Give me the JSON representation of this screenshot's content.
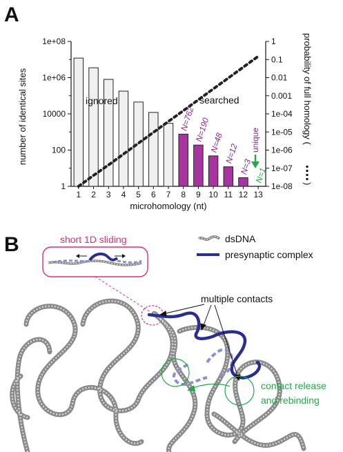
{
  "panel_a": {
    "letter": "A",
    "ylabel_left": "number of identical sites",
    "ylabel_right": "probability of full homology (",
    "xlabel": "microhomology (nt)",
    "ignored_label": "ignored",
    "searched_label": "searched",
    "unique_label": "unique"
  },
  "chart_data": {
    "type": "bar",
    "categories": [
      "1",
      "2",
      "3",
      "4",
      "5",
      "6",
      "7",
      "8",
      "9",
      "10",
      "11",
      "12",
      "13"
    ],
    "series": [
      {
        "axis": "left",
        "values": [
          12000000,
          3500000,
          800000,
          180000,
          45000,
          12000,
          3000,
          762,
          190,
          48,
          12,
          3,
          1
        ]
      },
      {
        "axis": "right",
        "style": "dotted-line",
        "x": [
          1,
          2,
          3,
          4,
          5,
          6,
          7,
          8,
          9,
          10,
          11,
          12,
          13
        ],
        "values": [
          1e-08,
          4e-08,
          1.5e-07,
          6e-07,
          2.4e-06,
          9.5e-06,
          3.8e-05,
          0.00015,
          0.0006,
          0.0024,
          0.0095,
          0.038,
          0.15
        ]
      }
    ],
    "bar_colors": {
      "ignored": "#f0f0f0",
      "searched": "#a8359f"
    },
    "bar_value_labels": [
      "",
      "",
      "",
      "",
      "",
      "",
      "",
      "N=762",
      "N=190",
      "N=48",
      "N=12",
      "N=3",
      "N=1"
    ],
    "yticks_left": [
      "1",
      "100",
      "10000",
      "1e+06",
      "1e+08"
    ],
    "yticks_right": [
      "1e-08",
      "1e-07",
      "1e-06",
      "1e-05",
      "1e-04",
      "0.001",
      "0.01",
      "0.1",
      "1"
    ],
    "ylim_left": [
      1,
      100000000
    ],
    "ylim_right": [
      1e-08,
      1
    ],
    "log_scale": true,
    "xlabel": "microhomology (nt)",
    "ylabel": "number of identical sites"
  },
  "panel_b": {
    "letter": "B",
    "inset_label": "short 1D sliding",
    "legend_dsdna": "dsDNA",
    "legend_complex": "presynaptic complex",
    "multiple_contacts": "multiple contacts",
    "release_line1": "contact release",
    "release_line2": "and rebinding"
  },
  "colors": {
    "purple": "#8a2a8a",
    "magenta": "#d6307a",
    "green": "#23a94a",
    "navy": "#2b2d8f",
    "light_navy": "#8e90c8",
    "bar_ignored": "#f0f0f0",
    "bar_searched": "#a8359f"
  }
}
